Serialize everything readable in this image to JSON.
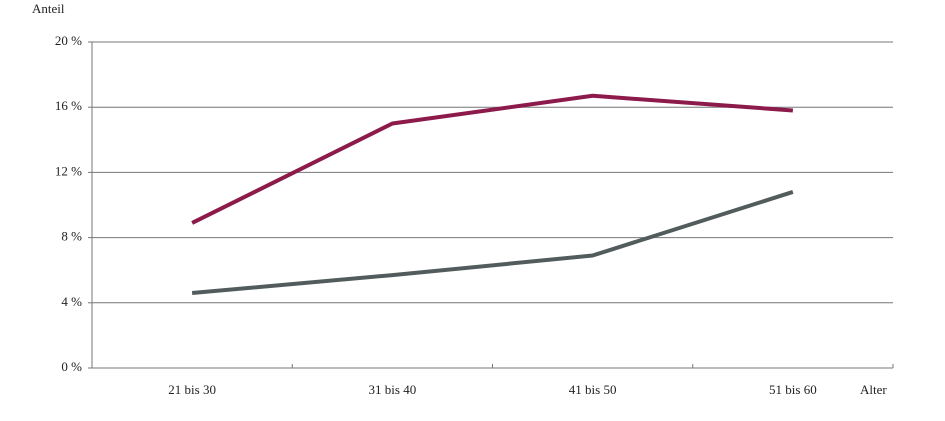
{
  "chart_data": {
    "type": "line",
    "y_label": "Anteil",
    "x_label": "Alter",
    "categories": [
      "21 bis 30",
      "31 bis 40",
      "41 bis 50",
      "51 bis 60"
    ],
    "series": [
      {
        "color": "#8c1a4b",
        "values": [
          8.9,
          15.0,
          16.7,
          15.8
        ]
      },
      {
        "color": "#525c5c",
        "values": [
          4.6,
          5.7,
          6.9,
          10.8
        ]
      }
    ],
    "ylim": [
      0,
      20
    ],
    "yticks": [
      {
        "value": 0,
        "label": "0 %"
      },
      {
        "value": 4,
        "label": "4 %"
      },
      {
        "value": 8,
        "label": "8 %"
      },
      {
        "value": 12,
        "label": "12 %"
      },
      {
        "value": 16,
        "label": "16 %"
      },
      {
        "value": 20,
        "label": "20 %"
      }
    ],
    "grid": true
  }
}
